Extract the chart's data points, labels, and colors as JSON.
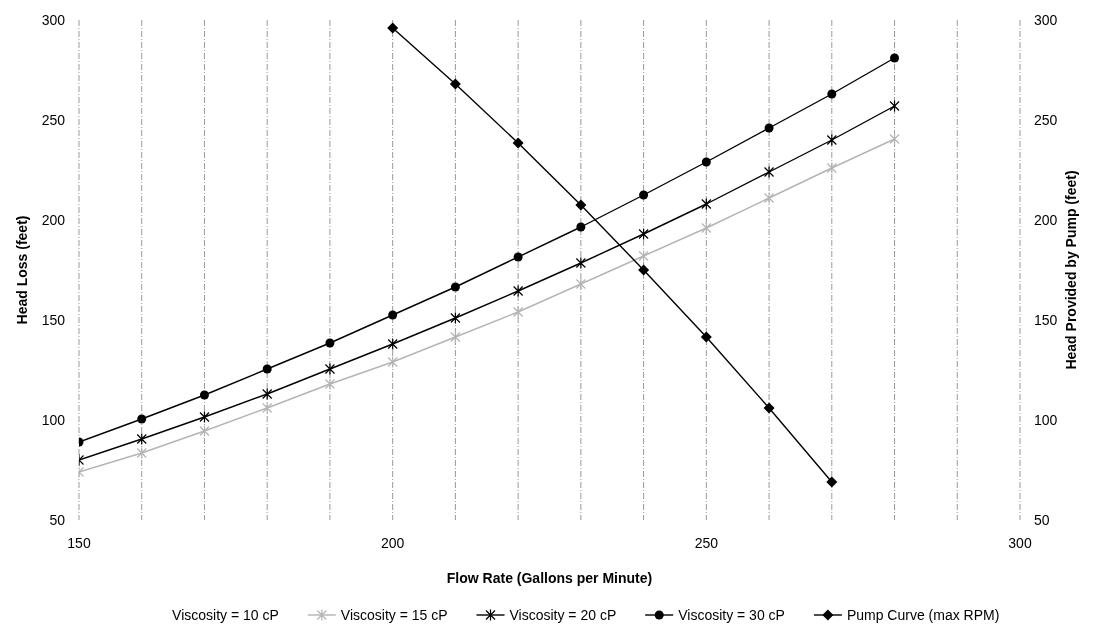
{
  "chart_data": {
    "type": "line",
    "xlabel": "Flow Rate (Gallons per Minute)",
    "ylabel": "Head Loss (feet)",
    "y2label": "Head Provided by Pump (feet)",
    "x": [
      150,
      160,
      170,
      180,
      190,
      200,
      210,
      220,
      230,
      240,
      250,
      260,
      270,
      280
    ],
    "series": [
      {
        "name": "Viscosity = 10 cP",
        "values": [
          null,
          null,
          null,
          null,
          null,
          null,
          null,
          null,
          null,
          null,
          null,
          null,
          null,
          null
        ]
      },
      {
        "name": "Viscosity = 15 cP",
        "color": "#b4b4b4",
        "marker": "cross",
        "values": [
          74,
          83.5,
          94.5,
          106,
          118,
          129,
          141.5,
          154,
          168,
          182,
          196,
          211,
          226,
          240.5
        ]
      },
      {
        "name": "Viscosity = 20 cP",
        "color": "#000000",
        "marker": "cross",
        "values": [
          80,
          90.5,
          101.5,
          113,
          125.5,
          138,
          151,
          164.5,
          178.5,
          193,
          208,
          224,
          240,
          257
        ]
      },
      {
        "name": "Viscosity = 30 cP",
        "color": "#000000",
        "marker": "circle",
        "values": [
          89,
          100.5,
          112.5,
          125.5,
          138.5,
          152.5,
          166.5,
          181.5,
          196.5,
          212.5,
          229,
          246,
          263,
          281
        ]
      },
      {
        "name": "Pump Curve (max RPM)",
        "color": "#000000",
        "marker": "diamond",
        "axis": "y2",
        "x": [
          200,
          210,
          220,
          230,
          240,
          250,
          260,
          270
        ],
        "values": [
          296,
          268,
          238.5,
          207.5,
          175,
          141.5,
          106,
          69
        ]
      }
    ],
    "xlim": [
      150,
      300
    ],
    "xticks": [
      150,
      {
        "value": 160,
        "label": null
      },
      {
        "value": 170,
        "label": null
      },
      {
        "value": 180,
        "label": null
      },
      {
        "value": 190,
        "label": null
      },
      200,
      {
        "value": 210,
        "label": null
      },
      {
        "value": 220,
        "label": null
      },
      {
        "value": 230,
        "label": null
      },
      {
        "value": 240,
        "label": null
      },
      250,
      {
        "value": 260,
        "label": null
      },
      {
        "value": 270,
        "label": null
      },
      {
        "value": 280,
        "label": null
      },
      {
        "value": 290,
        "label": null
      },
      300
    ],
    "ylim": [
      50,
      300
    ],
    "yticks": [
      50,
      100,
      150,
      200,
      250,
      300
    ],
    "y2lim": [
      50,
      300
    ],
    "y2ticks": [
      50,
      100,
      150,
      200,
      250,
      300
    ],
    "grid": "x",
    "legend": "bottom",
    "line_style": "solid"
  }
}
